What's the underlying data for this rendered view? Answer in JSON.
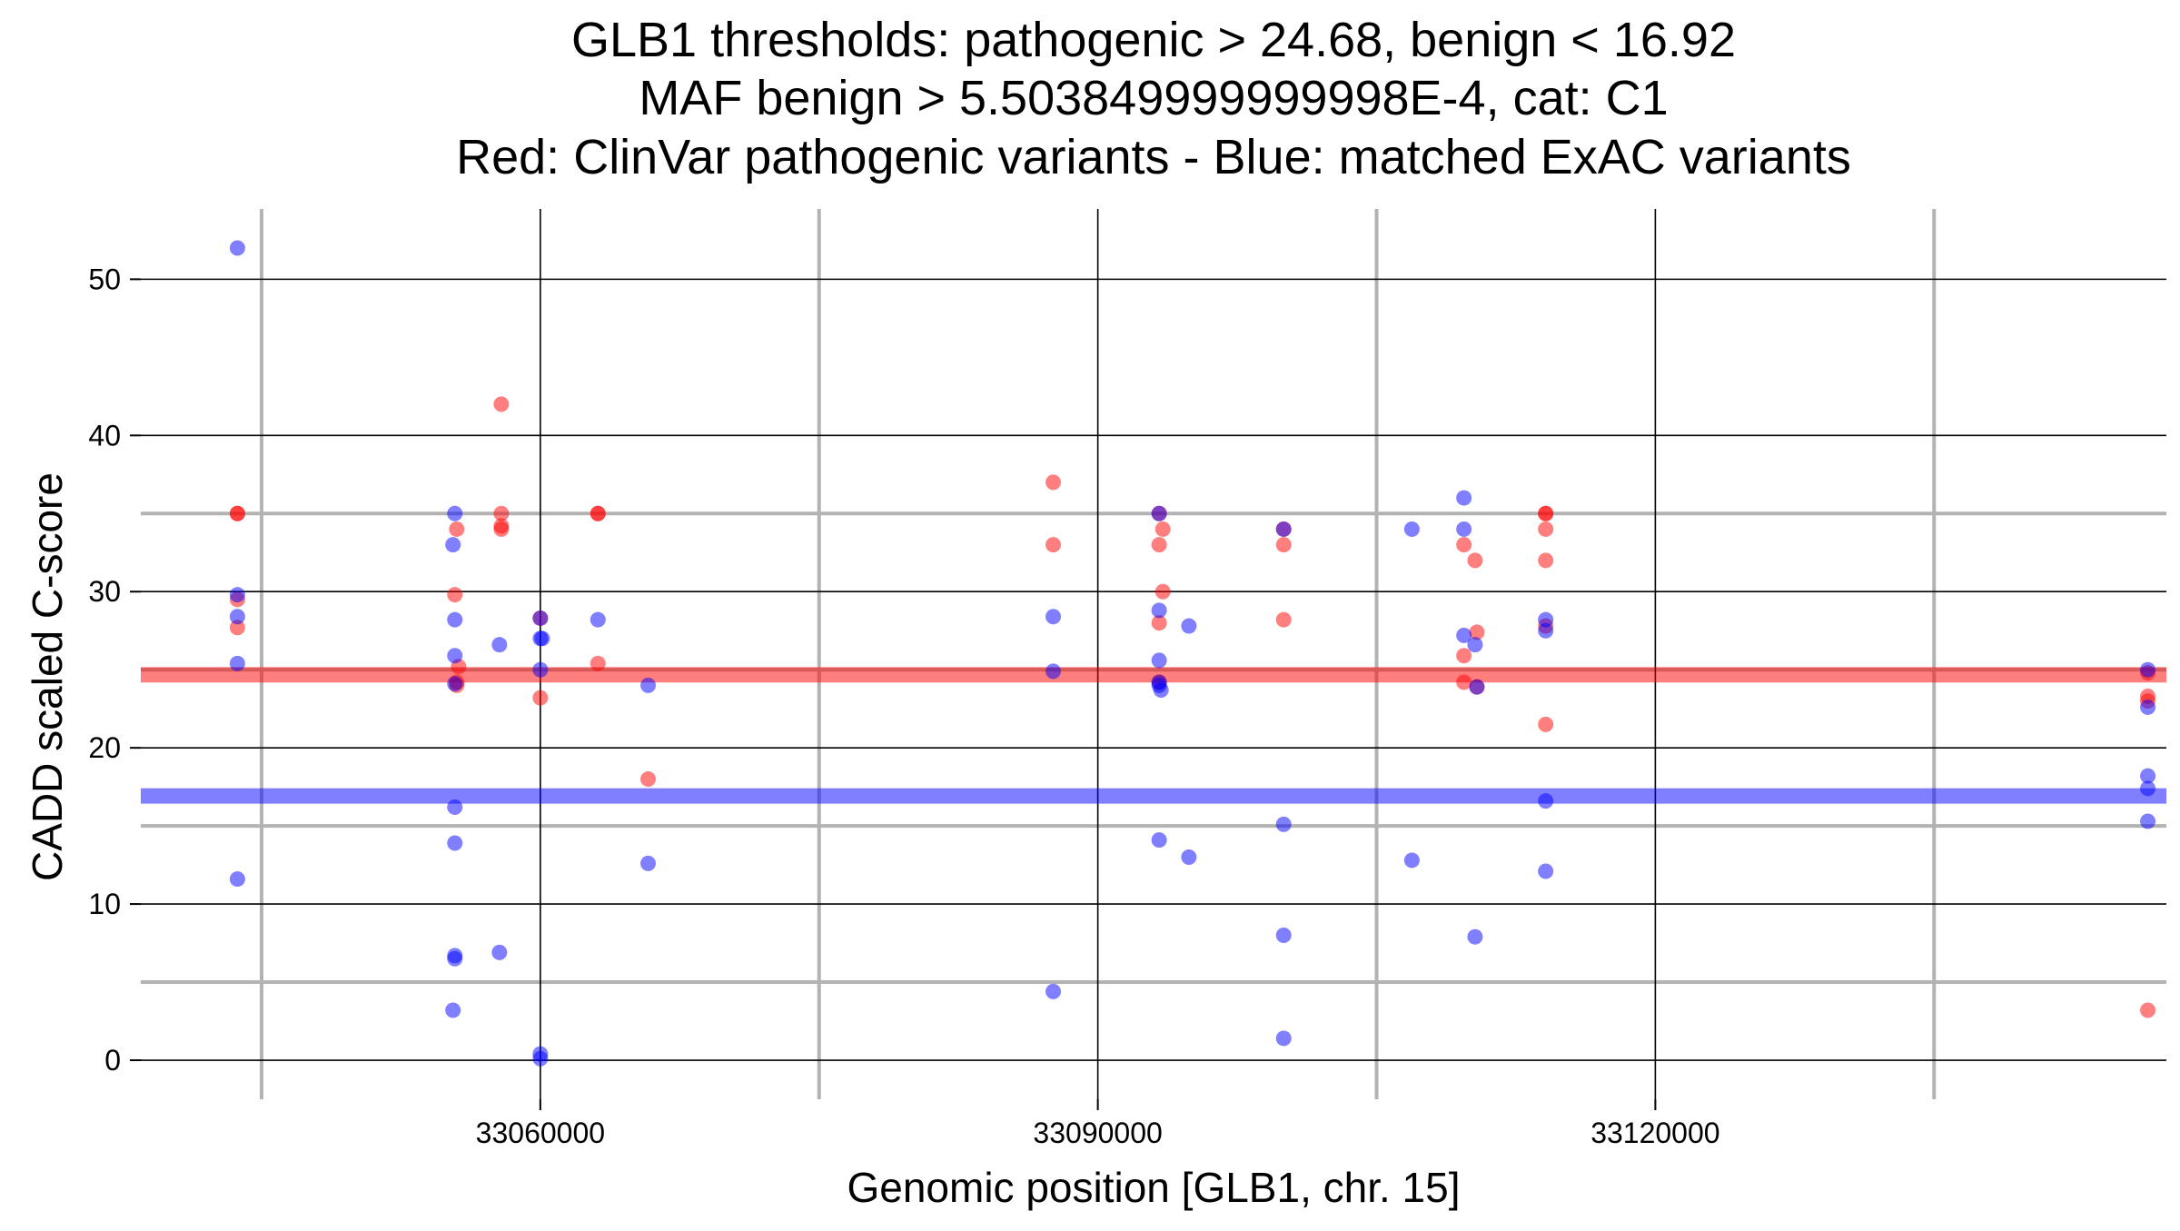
{
  "chart_data": {
    "type": "scatter",
    "title_lines": [
      "GLB1 thresholds: pathogenic > 24.68, benign < 16.92",
      "MAF benign > 5.503849999999998E-4, cat: C1",
      "Red: ClinVar pathogenic variants - Blue: matched ExAC variants"
    ],
    "xlabel": "Genomic position [GLB1, chr. 15]",
    "ylabel": "CADD scaled C-score",
    "xlim": [
      33038500,
      33147500
    ],
    "ylim": [
      -2.5,
      54.5
    ],
    "x_ticks": [
      33060000,
      33090000,
      33120000
    ],
    "y_ticks": [
      0,
      10,
      20,
      30,
      40,
      50
    ],
    "x_major_grid": [
      33060000,
      33090000,
      33120000
    ],
    "x_minor_grid": [
      33045000,
      33075000,
      33105000,
      33135000
    ],
    "y_major_grid": [
      0,
      10,
      20,
      30,
      40,
      50
    ],
    "y_minor_grid": [
      5,
      15,
      25,
      35
    ],
    "grid": true,
    "legend": "none",
    "thresholds": [
      {
        "value": 24.68,
        "color": "#ff0000"
      },
      {
        "value": 16.92,
        "color": "#0000ff"
      }
    ],
    "colors": {
      "pathogenic": "#ff0000",
      "benign": "#0000ff"
    },
    "series": [
      {
        "color": "#ff0000",
        "points": [
          [
            33043700,
            35
          ],
          [
            33043700,
            35
          ],
          [
            33043700,
            29.5
          ],
          [
            33043700,
            27.7
          ],
          [
            33055500,
            34
          ],
          [
            33055400,
            29.8
          ],
          [
            33055600,
            25.2
          ],
          [
            33055500,
            24.2
          ],
          [
            33055500,
            24
          ],
          [
            33057900,
            42
          ],
          [
            33057900,
            35
          ],
          [
            33057900,
            34.2
          ],
          [
            33057900,
            34
          ],
          [
            33060000,
            28.3
          ],
          [
            33060000,
            23.2
          ],
          [
            33063100,
            35
          ],
          [
            33063100,
            35
          ],
          [
            33063100,
            25.4
          ],
          [
            33065800,
            18
          ],
          [
            33087600,
            37
          ],
          [
            33087600,
            33
          ],
          [
            33093300,
            35
          ],
          [
            33093300,
            33
          ],
          [
            33093300,
            28
          ],
          [
            33093500,
            34
          ],
          [
            33093500,
            30
          ],
          [
            33093300,
            24.2
          ],
          [
            33100000,
            34
          ],
          [
            33100000,
            33
          ],
          [
            33100000,
            28.2
          ],
          [
            33109700,
            33
          ],
          [
            33109700,
            25.9
          ],
          [
            33109700,
            24.2
          ],
          [
            33110300,
            32
          ],
          [
            33110400,
            27.4
          ],
          [
            33110400,
            23.9
          ],
          [
            33114100,
            35
          ],
          [
            33114100,
            35
          ],
          [
            33114100,
            34
          ],
          [
            33114100,
            32
          ],
          [
            33114100,
            27.8
          ],
          [
            33114100,
            21.5
          ],
          [
            33146500,
            24.8
          ],
          [
            33146500,
            23.3
          ],
          [
            33146500,
            23
          ],
          [
            33146500,
            3.2
          ]
        ]
      },
      {
        "color": "#0000ff",
        "points": [
          [
            33043700,
            52
          ],
          [
            33043700,
            29.8
          ],
          [
            33043700,
            28.4
          ],
          [
            33043700,
            25.4
          ],
          [
            33043700,
            11.6
          ],
          [
            33055400,
            35
          ],
          [
            33055300,
            33
          ],
          [
            33055400,
            28.2
          ],
          [
            33055400,
            25.9
          ],
          [
            33055400,
            24.1
          ],
          [
            33055400,
            16.2
          ],
          [
            33055400,
            13.9
          ],
          [
            33055400,
            6.7
          ],
          [
            33055400,
            6.5
          ],
          [
            33055300,
            3.2
          ],
          [
            33057800,
            26.6
          ],
          [
            33057800,
            6.9
          ],
          [
            33060000,
            28.3
          ],
          [
            33060000,
            27
          ],
          [
            33060100,
            27
          ],
          [
            33060000,
            25
          ],
          [
            33060000,
            0.4
          ],
          [
            33060000,
            0.1
          ],
          [
            33063100,
            28.2
          ],
          [
            33065800,
            24
          ],
          [
            33065800,
            12.6
          ],
          [
            33087600,
            28.4
          ],
          [
            33087600,
            24.9
          ],
          [
            33087600,
            4.4
          ],
          [
            33093300,
            35
          ],
          [
            33093300,
            28.8
          ],
          [
            33093300,
            25.6
          ],
          [
            33093300,
            24.2
          ],
          [
            33093300,
            24
          ],
          [
            33093400,
            23.7
          ],
          [
            33093300,
            14.1
          ],
          [
            33094900,
            27.8
          ],
          [
            33094900,
            13
          ],
          [
            33100000,
            34
          ],
          [
            33100000,
            15.1
          ],
          [
            33100000,
            8
          ],
          [
            33100000,
            1.4
          ],
          [
            33106900,
            34
          ],
          [
            33106900,
            12.8
          ],
          [
            33109700,
            36
          ],
          [
            33109700,
            34
          ],
          [
            33109700,
            27.2
          ],
          [
            33110300,
            26.6
          ],
          [
            33110400,
            23.9
          ],
          [
            33110300,
            7.9
          ],
          [
            33114100,
            28.2
          ],
          [
            33114100,
            27.5
          ],
          [
            33114100,
            16.6
          ],
          [
            33114100,
            12.1
          ],
          [
            33146500,
            25
          ],
          [
            33146500,
            22.6
          ],
          [
            33146500,
            18.2
          ],
          [
            33146500,
            17.4
          ],
          [
            33146500,
            15.3
          ]
        ]
      }
    ]
  }
}
